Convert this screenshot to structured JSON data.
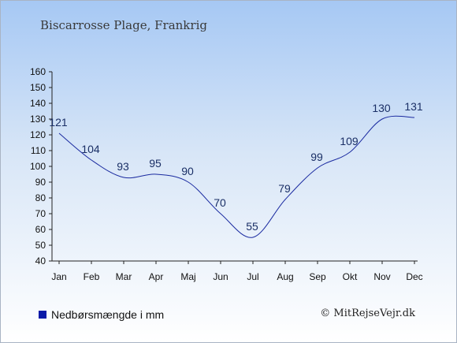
{
  "header": {
    "title": "Biscarrosse Plage, Frankrig"
  },
  "legend": {
    "label": "Nedbørsmængde i mm",
    "color": "#0a1aa8"
  },
  "footer": {
    "credit": "© MitRejseVejr.dk"
  },
  "chart_data": {
    "type": "line",
    "categories": [
      "Jan",
      "Feb",
      "Mar",
      "Apr",
      "Maj",
      "Jun",
      "Jul",
      "Aug",
      "Sep",
      "Okt",
      "Nov",
      "Dec"
    ],
    "series": [
      {
        "name": "Nedbørsmængde i mm",
        "values": [
          121,
          104,
          93,
          95,
          90,
          70,
          55,
          79,
          99,
          109,
          130,
          131
        ],
        "color": "#1a2aa0"
      }
    ],
    "ylim": [
      40,
      160
    ],
    "yticks": [
      40,
      50,
      60,
      70,
      80,
      90,
      100,
      110,
      120,
      130,
      140,
      150,
      160
    ],
    "data_labels": true,
    "grid": false
  }
}
